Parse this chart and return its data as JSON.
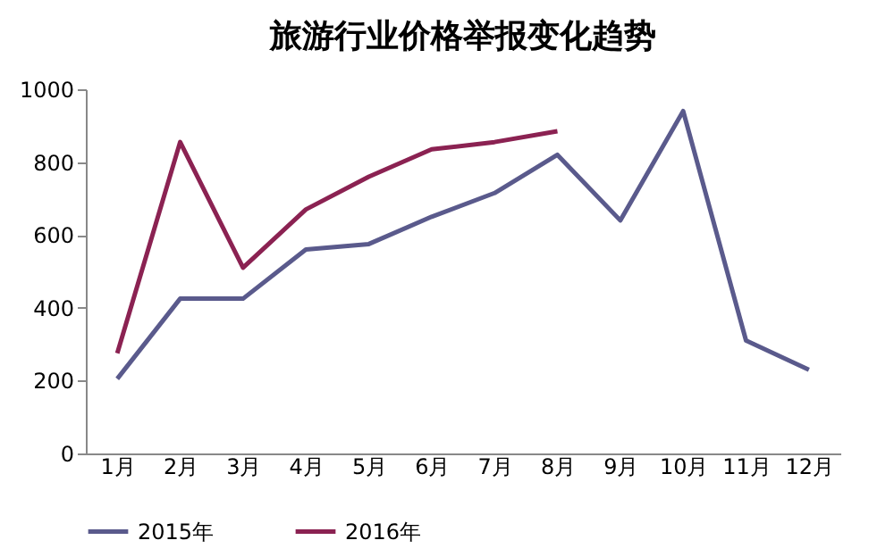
{
  "chart_data": {
    "type": "line",
    "title": "旅游行业价格举报变化趋势",
    "categories": [
      "1月",
      "2月",
      "3月",
      "4月",
      "5月",
      "6月",
      "7月",
      "8月",
      "9月",
      "10月",
      "11月",
      "12月"
    ],
    "series": [
      {
        "name": "2015年",
        "color": "#5a5a8c",
        "values": [
          205,
          425,
          425,
          560,
          575,
          650,
          715,
          820,
          640,
          940,
          310,
          230
        ]
      },
      {
        "name": "2016年",
        "color": "#8b2252",
        "values": [
          275,
          855,
          510,
          670,
          760,
          835,
          855,
          885,
          null,
          null,
          null,
          null
        ]
      }
    ],
    "ylim": [
      0,
      1000
    ],
    "yticks": [
      0,
      200,
      400,
      600,
      800,
      1000
    ],
    "grid": false,
    "legend": "bottom",
    "marker": "none",
    "line_style": "solid"
  }
}
